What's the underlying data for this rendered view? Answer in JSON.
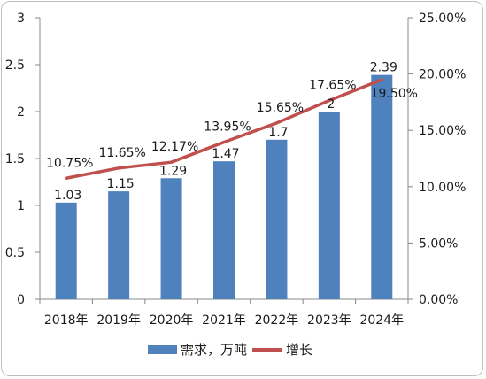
{
  "chart_data": {
    "type": "bar+line",
    "categories": [
      "2018年",
      "2019年",
      "2020年",
      "2021年",
      "2022年",
      "2023年",
      "2024年"
    ],
    "series": [
      {
        "name": "需求，万吨",
        "type": "bar",
        "axis": "left",
        "color": "#4f81bd",
        "values": [
          1.03,
          1.15,
          1.29,
          1.47,
          1.7,
          2,
          2.39
        ],
        "labels": [
          "1.03",
          "1.15",
          "1.29",
          "1.47",
          "1.7",
          "2",
          "2.39"
        ]
      },
      {
        "name": "增长",
        "type": "line",
        "axis": "right",
        "color": "#c0504d",
        "values": [
          10.75,
          11.65,
          12.17,
          13.95,
          15.65,
          17.65,
          19.5
        ],
        "labels": [
          "10.75%",
          "11.65%",
          "12.17%",
          "13.95%",
          "15.65%",
          "17.65%",
          "19.50%"
        ]
      }
    ],
    "y_left": {
      "min": 0,
      "max": 3,
      "ticks": [
        "0",
        "0.5",
        "1",
        "1.5",
        "2",
        "2.5",
        "3"
      ]
    },
    "y_right": {
      "min": 0,
      "max": 25,
      "ticks": [
        "0.00%",
        "5.00%",
        "10.00%",
        "15.00%",
        "20.00%",
        "25.00%"
      ]
    },
    "grid": false,
    "legend": "bottom"
  }
}
